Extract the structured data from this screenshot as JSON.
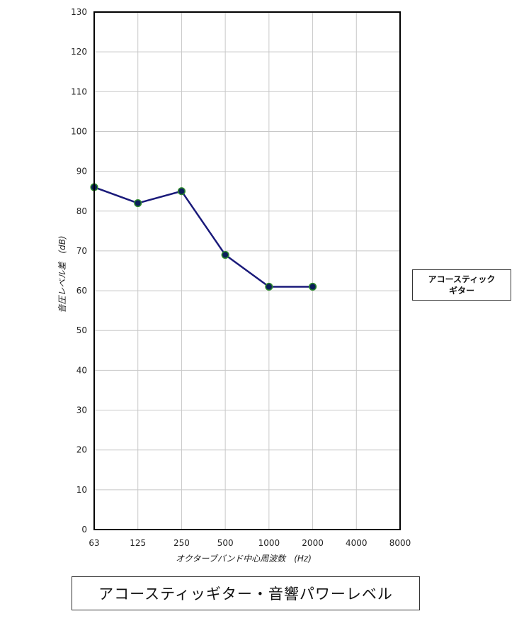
{
  "chart_data": {
    "type": "line",
    "title": "アコースティッギター・音響パワーレベル",
    "xlabel": "オクターブバンド中心周波数　(Hz)",
    "ylabel": "音圧レベル差　(dB)",
    "categories": [
      "63",
      "125",
      "250",
      "500",
      "1000",
      "2000",
      "4000",
      "8000"
    ],
    "series": [
      {
        "name_lines": [
          "アコースティック",
          "ギター"
        ],
        "values": [
          86,
          82,
          85,
          69,
          61,
          61,
          null,
          null
        ]
      }
    ],
    "ylim": [
      0,
      130
    ],
    "yticks": [
      0,
      10,
      20,
      30,
      40,
      50,
      60,
      70,
      80,
      90,
      100,
      110,
      120,
      130
    ],
    "grid": true,
    "legend_position": "right",
    "colors": {
      "line": "#1a1a7a",
      "marker_fill": "#0c1f5a",
      "marker_edge": "#2e8b2e",
      "grid": "#c8c8c8"
    }
  }
}
